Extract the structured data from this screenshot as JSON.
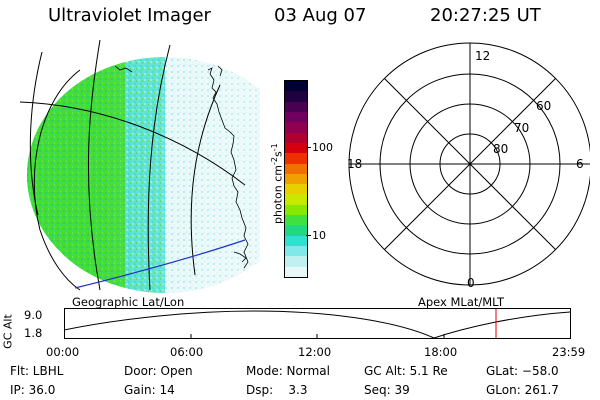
{
  "header": {
    "title": "Ultraviolet Imager",
    "date": "03 Aug 07",
    "time": "20:27:25 UT"
  },
  "map": {
    "label": "Geographic Lat/Lon"
  },
  "colorbar": {
    "unit_text": "photon cm",
    "unit_sup1": "-2",
    "unit_s": "s",
    "unit_sup2": "-1",
    "ticks": [
      "100",
      "10"
    ],
    "colors": [
      "#000033",
      "#200040",
      "#4a0050",
      "#700060",
      "#900050",
      "#b00030",
      "#d40010",
      "#ee3000",
      "#f07000",
      "#f0a000",
      "#e8d000",
      "#c8e800",
      "#88e800",
      "#40e040",
      "#20d880",
      "#30e0d0",
      "#80e8e8",
      "#c0f0f0",
      "#e8f8f8"
    ]
  },
  "polar": {
    "label": "Apex MLat/MLT",
    "mlt_labels": [
      "12",
      "18",
      "6",
      "0"
    ],
    "mlat_labels": [
      "60",
      "70",
      "80"
    ]
  },
  "altitude_panel": {
    "ylabel": "GC Alt",
    "y_ticks": [
      "9.0",
      "1.8"
    ],
    "x_ticks": [
      "00:00",
      "06:00",
      "12:00",
      "18:00",
      "23:59"
    ],
    "current_time_marker": "20:27",
    "marker_color": "#e00000"
  },
  "status": {
    "filter": "Flt: LBHL",
    "ip": "IP: 36.0",
    "door": "Door: Open",
    "gain": "Gain: 14",
    "mode": "Mode: Normal",
    "dsp": "Dsp:    3.3",
    "gc_alt": "GC Alt: 5.1 Re",
    "seq": "Seq: 39",
    "glat": "GLat: −58.0",
    "glon": "GLon: 261.7"
  },
  "colors": {
    "aurora_green": "#44dd33",
    "aurora_cyan": "#33dddd",
    "coast_blue": "#2233cc"
  }
}
